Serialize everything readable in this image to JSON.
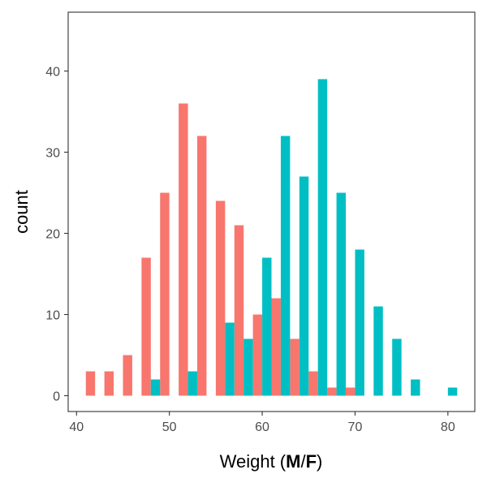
{
  "chart_data": {
    "type": "bar",
    "title": "",
    "xlabel": {
      "prefix": "Weight (",
      "group_a": "M",
      "separator": "/",
      "group_b": "F",
      "suffix": ")"
    },
    "ylabel": "count",
    "xlim": [
      39.1,
      82.9
    ],
    "ylim": [
      -1.95,
      47.25
    ],
    "x_ticks": [
      40,
      50,
      60,
      70,
      80
    ],
    "y_ticks": [
      0,
      10,
      20,
      30,
      40
    ],
    "grid": false,
    "legend": "none",
    "bar_width": 1.0,
    "series": [
      {
        "name": "M",
        "color": "#F8766D",
        "x": [
          41.5,
          43.5,
          45.5,
          47.5,
          49.5,
          51.5,
          53.5,
          55.5,
          57.5,
          59.5,
          61.5,
          63.5,
          65.5,
          67.5,
          69.5
        ],
        "values": [
          3,
          3,
          5,
          17,
          25,
          36,
          32,
          24,
          21,
          10,
          12,
          7,
          3,
          1,
          1
        ]
      },
      {
        "name": "F",
        "color": "#00BFC4",
        "x": [
          48.5,
          52.5,
          56.5,
          58.5,
          60.5,
          62.5,
          64.5,
          66.5,
          68.5,
          70.5,
          72.5,
          74.5,
          76.5,
          80.5
        ],
        "values": [
          2,
          3,
          9,
          7,
          17,
          32,
          27,
          39,
          25,
          18,
          11,
          7,
          2,
          1
        ]
      }
    ]
  }
}
